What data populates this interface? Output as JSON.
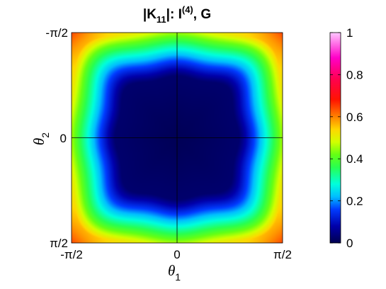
{
  "chart_data": {
    "type": "heatmap",
    "title": {
      "main": "|K",
      "sub": "11",
      "mid": "|:  I",
      "sup": "(4)",
      "end": ", G"
    },
    "xlabel": {
      "symbol": "θ",
      "sub": "1"
    },
    "ylabel": {
      "symbol": "θ",
      "sub": "2"
    },
    "x_ticks": [
      "-π/2",
      "0",
      "π/2"
    ],
    "y_ticks": [
      "-π/2",
      "0",
      "π/2"
    ],
    "x_range": [
      "-π/2",
      "π/2"
    ],
    "y_range": [
      "-π/2",
      "π/2"
    ],
    "y_direction": "top to bottom (-π/2 at top, π/2 at bottom)",
    "colorbar": {
      "range": [
        0,
        1
      ],
      "ticks": [
        "0",
        "0.2",
        "0.4",
        "0.6",
        "0.8",
        "1"
      ],
      "colormap": "jet-like: dark navy (0) → blue → cyan → green → yellow → orange → red → magenta → pink (1)"
    },
    "field": {
      "description": "near zero (dark navy) across a wide rounded-square interior, rising steeply in a ring toward the edges; reaches ~0.5 (yellow) along edge midpoints and ~0.6–0.65 (orange/red) in the corners",
      "center_value": 0.0,
      "edge_mid_value": 0.5,
      "corner_value": 0.62
    },
    "crosshair_lines": {
      "x": "0",
      "y": "0"
    },
    "grid": false
  }
}
